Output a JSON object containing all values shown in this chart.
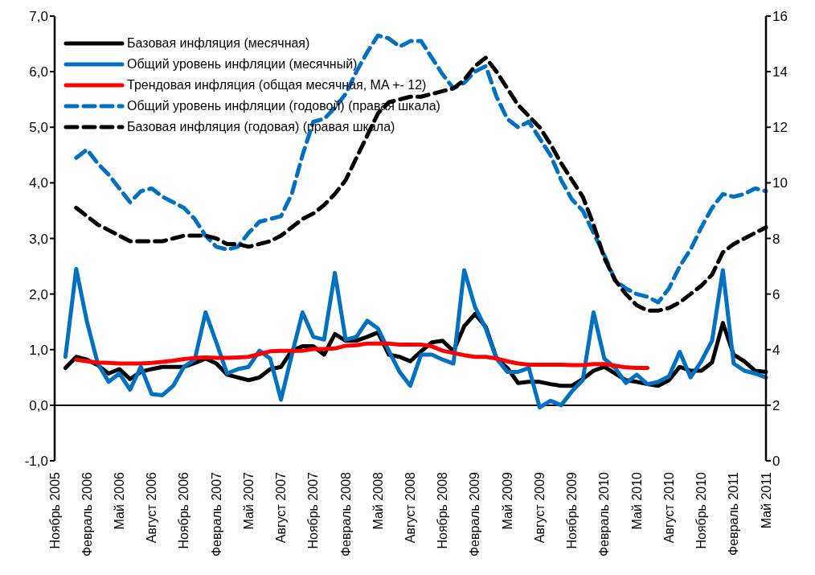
{
  "chart_data": {
    "type": "line",
    "categories": [
      "Ноябрь 2005",
      null,
      null,
      "Февраль 2006",
      null,
      null,
      "Май 2006",
      null,
      null,
      "Август 2006",
      null,
      null,
      "Ноябрь 2006",
      null,
      null,
      "Февраль 2007",
      null,
      null,
      "Май 2007",
      null,
      null,
      "Август 2007",
      null,
      null,
      "Ноябрь 2007",
      null,
      null,
      "Февраль 2008",
      null,
      null,
      "Май 2008",
      null,
      null,
      "Август 2008",
      null,
      null,
      "Ноябрь 2008",
      null,
      null,
      "Февраль 2009",
      null,
      null,
      "Май 2009",
      null,
      null,
      "Август 2009",
      null,
      null,
      "Ноябрь 2009",
      null,
      null,
      "Февраль 2010",
      null,
      null,
      "Май 2010",
      null,
      null,
      "Август 2010",
      null,
      null,
      "Ноябрь 2010",
      null,
      null,
      "Февраль 2011",
      null,
      null,
      "Май 2011"
    ],
    "series": [
      {
        "name": "Базовая инфляция (месячная)",
        "color": "#000000",
        "line_style": "solid",
        "values": [
          null,
          0.67,
          0.87,
          0.82,
          0.72,
          0.57,
          0.65,
          0.47,
          0.6,
          0.65,
          0.69,
          0.69,
          0.69,
          0.76,
          0.84,
          0.75,
          0.55,
          0.5,
          0.45,
          0.5,
          0.65,
          0.69,
          0.98,
          1.06,
          1.06,
          0.91,
          1.28,
          1.16,
          1.16,
          1.23,
          1.31,
          0.91,
          0.87,
          0.79,
          0.97,
          1.13,
          1.16,
          0.97,
          1.42,
          1.64,
          1.41,
          0.84,
          0.67,
          0.4,
          0.42,
          0.42,
          0.38,
          0.35,
          0.35,
          0.47,
          0.62,
          0.69,
          0.57,
          0.45,
          0.42,
          0.38,
          0.35,
          0.45,
          0.69,
          0.62,
          0.62,
          0.77,
          1.48,
          0.91,
          0.79,
          0.62,
          0.6
        ]
      },
      {
        "name": "Общий уровень инфляции (месячный)",
        "color": "#0070c0",
        "line_style": "solid",
        "values": [
          null,
          0.87,
          2.45,
          1.5,
          0.75,
          0.42,
          0.57,
          0.28,
          0.69,
          0.2,
          0.18,
          0.35,
          0.69,
          0.82,
          1.67,
          1.13,
          0.57,
          0.65,
          0.69,
          0.98,
          0.84,
          0.1,
          0.9,
          1.67,
          1.23,
          1.18,
          2.38,
          1.18,
          1.23,
          1.52,
          1.38,
          0.98,
          0.6,
          0.35,
          0.91,
          0.91,
          0.82,
          0.75,
          2.43,
          1.77,
          1.38,
          0.84,
          0.6,
          0.6,
          0.67,
          -0.04,
          0.08,
          0.0,
          0.25,
          0.45,
          1.67,
          0.84,
          0.67,
          0.4,
          0.55,
          0.38,
          0.42,
          0.52,
          0.96,
          0.5,
          0.79,
          1.16,
          2.43,
          0.75,
          0.62,
          0.57,
          0.5
        ]
      },
      {
        "name": "Трендовая инфляция (общая месячная, MA +- 12)",
        "color": "#ff0000",
        "line_style": "solid",
        "values": [
          null,
          null,
          0.82,
          0.79,
          0.77,
          0.76,
          0.75,
          0.75,
          0.75,
          0.76,
          0.78,
          0.8,
          0.83,
          0.85,
          0.86,
          0.85,
          0.85,
          0.86,
          0.87,
          0.92,
          0.97,
          0.98,
          0.98,
          0.98,
          1.01,
          1.01,
          1.02,
          1.07,
          1.08,
          1.11,
          1.11,
          1.11,
          1.09,
          1.09,
          1.09,
          1.06,
          0.98,
          0.94,
          0.9,
          0.87,
          0.87,
          0.84,
          0.79,
          0.75,
          0.73,
          0.73,
          0.73,
          0.73,
          0.72,
          0.72,
          0.74,
          0.74,
          0.71,
          0.68,
          0.67,
          0.67,
          null,
          null,
          null,
          null,
          null,
          null,
          null,
          null,
          null,
          null,
          null
        ]
      },
      {
        "name": "Общий уровень инфляции (годовой) (правая шкала)",
        "color": "#0070c0",
        "line_style": "dashed",
        "axis": "y2",
        "values": [
          null,
          null,
          10.9,
          11.2,
          10.7,
          10.3,
          9.8,
          9.3,
          9.7,
          9.8,
          9.5,
          9.3,
          9.1,
          8.7,
          8.1,
          7.7,
          7.6,
          7.7,
          8.2,
          8.6,
          8.7,
          8.8,
          9.6,
          11.0,
          12.2,
          12.3,
          12.7,
          13.2,
          14.0,
          14.7,
          15.3,
          15.2,
          14.9,
          15.1,
          15.1,
          14.5,
          13.9,
          13.4,
          13.6,
          14.0,
          14.2,
          13.1,
          12.3,
          12.0,
          12.2,
          11.6,
          11.0,
          10.1,
          9.4,
          9.0,
          8.2,
          7.4,
          6.5,
          6.2,
          6.0,
          5.9,
          5.7,
          6.2,
          7.0,
          7.6,
          8.4,
          9.1,
          9.6,
          9.5,
          9.6,
          9.8,
          9.7
        ]
      },
      {
        "name": "Базовая инфляция (годовая) (правая шкала)",
        "color": "#000000",
        "line_style": "dashed",
        "axis": "y2",
        "values": [
          null,
          null,
          9.1,
          8.8,
          8.5,
          8.3,
          8.1,
          7.9,
          7.9,
          7.9,
          7.9,
          8.0,
          8.1,
          8.1,
          8.1,
          8.0,
          7.8,
          7.8,
          7.7,
          7.8,
          7.9,
          8.1,
          8.4,
          8.7,
          8.9,
          9.2,
          9.6,
          10.1,
          10.9,
          11.7,
          12.5,
          12.9,
          13.0,
          13.1,
          13.1,
          13.2,
          13.3,
          13.4,
          13.7,
          14.2,
          14.5,
          14.0,
          13.4,
          12.8,
          12.4,
          12.0,
          11.4,
          10.7,
          10.1,
          9.5,
          8.5,
          7.3,
          6.5,
          6.0,
          5.6,
          5.4,
          5.4,
          5.5,
          5.7,
          6.0,
          6.3,
          6.7,
          7.5,
          7.8,
          8.0,
          8.2,
          8.4
        ]
      }
    ],
    "ylim": [
      -1,
      7
    ],
    "yticks": [
      {
        "value": -1,
        "label": "-1,0"
      },
      {
        "value": 0,
        "label": "0,0"
      },
      {
        "value": 1,
        "label": "1,0"
      },
      {
        "value": 2,
        "label": "2,0"
      },
      {
        "value": 3,
        "label": "3,0"
      },
      {
        "value": 4,
        "label": "4,0"
      },
      {
        "value": 5,
        "label": "5,0"
      },
      {
        "value": 6,
        "label": "6,0"
      },
      {
        "value": 7,
        "label": "7,0"
      }
    ],
    "y2lim": [
      0,
      16
    ],
    "y2ticks": [
      0,
      2,
      4,
      6,
      8,
      10,
      12,
      14,
      16
    ],
    "ref_lines": [
      {
        "axis": "y",
        "value": 0,
        "color": "#000000"
      }
    ],
    "grid": false,
    "legend": "top left"
  }
}
